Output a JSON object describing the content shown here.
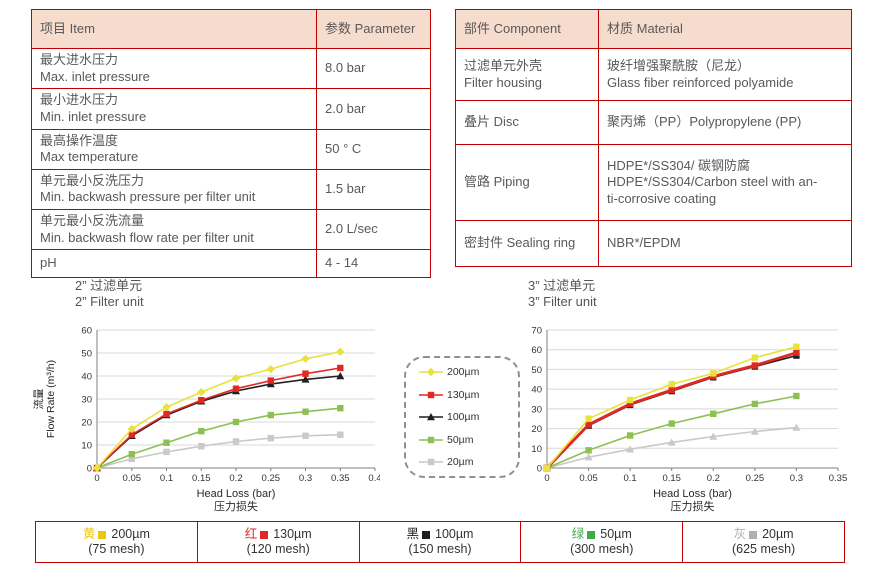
{
  "colors": {
    "border_red": "#c00000",
    "header_bg": "#f6dccd",
    "table_text": "#595959",
    "grid": "#d8d8d8",
    "axis": "#7f7f7f",
    "yellow": "#e8e23b",
    "red": "#e02922",
    "black": "#1f1f1f",
    "green": "#8cc152",
    "gray": "#c9c9c9"
  },
  "spec_table": {
    "headers": [
      "项目 Item",
      "参数 Parameter"
    ],
    "rows": [
      {
        "item": "最大进水压力\nMax. inlet pressure",
        "value": "8.0 bar"
      },
      {
        "item": "最小进水压力\nMin. inlet pressure",
        "value": "2.0 bar"
      },
      {
        "item": "最高操作温度\nMax temperature",
        "value": "50 ° C"
      },
      {
        "item": "单元最小反洗压力\nMin. backwash pressure per filter unit",
        "value": "1.5 bar"
      },
      {
        "item": "单元最小反洗流量\nMin. backwash flow rate per filter unit",
        "value": "2.0 L/sec"
      },
      {
        "item": "pH",
        "value": "4 - 14"
      }
    ]
  },
  "material_table": {
    "headers": [
      "部件 Component",
      "材质 Material"
    ],
    "rows": [
      {
        "component": "过滤单元外壳\nFilter housing",
        "material": "玻纤增强聚酰胺（尼龙）\nGlass fiber reinforced polyamide"
      },
      {
        "component": "叠片 Disc",
        "material": "聚丙烯（PP）Polypropylene (PP)"
      },
      {
        "component": "管路 Piping",
        "material": "HDPE*/SS304/ 碳钢防腐\nHDPE*/SS304/Carbon steel with an-\nti-corrosive coating"
      },
      {
        "component": "密封件 Sealing ring",
        "material": "NBR*/EPDM"
      }
    ]
  },
  "chart_data": [
    {
      "type": "line",
      "title_cn": "2” 过滤单元",
      "title_en": "2” Filter unit",
      "ylabel_cn": "流量",
      "ylabel": "Flow Rate (m³/h)",
      "xlabel": "Head Loss (bar)",
      "xlabel_cn": "压力损失",
      "xlim": [
        0,
        0.4
      ],
      "ylim": [
        0,
        60
      ],
      "xticks": [
        0,
        0.05,
        0.1,
        0.15,
        0.2,
        0.25,
        0.3,
        0.35,
        0.4
      ],
      "yticks": [
        0,
        10,
        20,
        30,
        40,
        50,
        60
      ],
      "grid": "horizontal",
      "x": [
        0,
        0.05,
        0.1,
        0.15,
        0.2,
        0.25,
        0.3,
        0.35
      ],
      "series": [
        {
          "name": "200µm",
          "color": "#e8e23b",
          "marker": "diamond",
          "line_width": 1.6,
          "values": [
            0,
            17,
            26.5,
            33,
            39,
            43,
            47.5,
            50.5
          ]
        },
        {
          "name": "130µm",
          "color": "#e02922",
          "marker": "square",
          "line_width": 1.6,
          "values": [
            0,
            14.5,
            23.5,
            29.5,
            34.5,
            38,
            41,
            43.5
          ]
        },
        {
          "name": "100µm",
          "color": "#1f1f1f",
          "marker": "triangle",
          "line_width": 1.6,
          "values": [
            0,
            14,
            23,
            29,
            33.5,
            36.5,
            38.5,
            40
          ]
        },
        {
          "name": "50µm",
          "color": "#8cc152",
          "marker": "square",
          "line_width": 1.6,
          "values": [
            0,
            6,
            11,
            16,
            20,
            23,
            24.5,
            26
          ]
        },
        {
          "name": "20µm",
          "color": "#c9c9c9",
          "marker": "square",
          "line_width": 1.6,
          "values": [
            0,
            4,
            7,
            9.5,
            11.5,
            13,
            14,
            14.5
          ]
        }
      ]
    },
    {
      "type": "line",
      "title_cn": "3” 过滤单元",
      "title_en": "3” Filter unit",
      "ylabel_cn": "流量",
      "ylabel": "Flow Rate (m³/h)",
      "xlabel": "Head Loss (bar)",
      "xlabel_cn": "压力损失",
      "xlim": [
        0,
        0.35
      ],
      "ylim": [
        0,
        70
      ],
      "xticks": [
        0,
        0.05,
        0.1,
        0.15,
        0.2,
        0.25,
        0.3,
        0.35
      ],
      "yticks": [
        0,
        10,
        20,
        30,
        40,
        50,
        60,
        70
      ],
      "grid": "horizontal",
      "x": [
        0,
        0.05,
        0.1,
        0.15,
        0.2,
        0.25,
        0.3
      ],
      "series": [
        {
          "name": "200µm",
          "color": "#e8e23b",
          "marker": "square",
          "line_width": 1.6,
          "values": [
            0,
            25,
            34.5,
            42.5,
            48,
            56,
            61.5
          ]
        },
        {
          "name": "130µm",
          "color": "#e02922",
          "marker": "square",
          "line_width": 2.8,
          "values": [
            0,
            22,
            32.5,
            39.5,
            46.5,
            52,
            58.5
          ]
        },
        {
          "name": "100µm",
          "color": "#1f1f1f",
          "marker": "square",
          "line_width": 1.6,
          "values": [
            0,
            21.5,
            32,
            39,
            46,
            51.5,
            57
          ]
        },
        {
          "name": "50µm",
          "color": "#8cc152",
          "marker": "square",
          "line_width": 1.6,
          "values": [
            0,
            9,
            16.5,
            22.5,
            27.5,
            32.5,
            36.5
          ]
        },
        {
          "name": "20µm",
          "color": "#c9c9c9",
          "marker": "triangle",
          "line_width": 1.6,
          "values": [
            0,
            5.5,
            9.5,
            13,
            16,
            18.5,
            20.5
          ]
        }
      ]
    }
  ],
  "mid_legend": {
    "entries": [
      {
        "label": "200µm",
        "color": "#e8e23b",
        "marker": "diamond"
      },
      {
        "label": "130µm",
        "color": "#e02922",
        "marker": "square"
      },
      {
        "label": "100µm",
        "color": "#1f1f1f",
        "marker": "triangle"
      },
      {
        "label": "50µm",
        "color": "#8cc152",
        "marker": "square"
      },
      {
        "label": "20µm",
        "color": "#c9c9c9",
        "marker": "square"
      }
    ]
  },
  "bottom_legend": {
    "cells": [
      {
        "cn": "黄",
        "color": "#edc613",
        "size": "200µm",
        "mesh": "(75 mesh)"
      },
      {
        "cn": "红",
        "color": "#e02922",
        "size": "130µm",
        "mesh": "(120 mesh)"
      },
      {
        "cn": "黑",
        "color": "#1f1f1f",
        "size": "100µm",
        "mesh": "(150 mesh)"
      },
      {
        "cn": "绿",
        "color": "#3fab49",
        "size": "50µm",
        "mesh": "(300 mesh)"
      },
      {
        "cn": "灰",
        "color": "#b0b0b0",
        "size": "20µm",
        "mesh": "(625 mesh)"
      }
    ]
  }
}
